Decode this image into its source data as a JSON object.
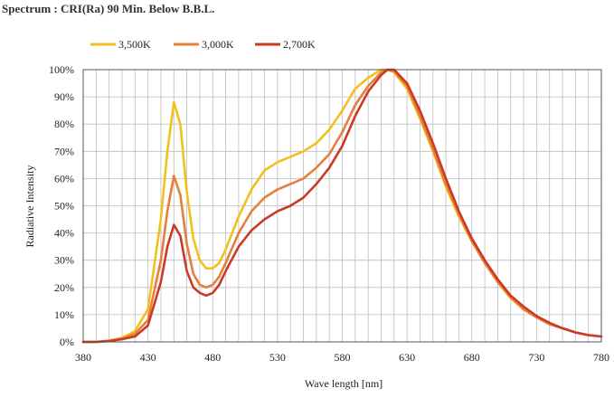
{
  "chart_data": {
    "type": "line",
    "title": "Spectrum : CRI(Ra) 90 Min. Below B.B.L.",
    "xlabel": "Wave length [nm]",
    "ylabel": "Radiative Intensity",
    "xlim": [
      380,
      780
    ],
    "ylim": [
      0,
      100
    ],
    "x_ticks": [
      380,
      430,
      480,
      530,
      580,
      630,
      680,
      730,
      780
    ],
    "x_tick_labels": [
      "380",
      "430",
      "480",
      "530",
      "580",
      "630",
      "680",
      "730",
      "780"
    ],
    "y_ticks": [
      0,
      10,
      20,
      30,
      40,
      50,
      60,
      70,
      80,
      90,
      100
    ],
    "y_tick_labels": [
      "0%",
      "10%",
      "20%",
      "30%",
      "40%",
      "50%",
      "60%",
      "70%",
      "80%",
      "90%",
      "100%"
    ],
    "grid": true,
    "legend_position": "top-left",
    "x": [
      380,
      390,
      400,
      410,
      420,
      430,
      440,
      445,
      450,
      455,
      460,
      465,
      470,
      475,
      480,
      485,
      490,
      500,
      510,
      520,
      530,
      540,
      550,
      560,
      570,
      580,
      590,
      600,
      610,
      615,
      620,
      630,
      640,
      650,
      660,
      670,
      680,
      690,
      700,
      710,
      720,
      730,
      740,
      750,
      760,
      770,
      780
    ],
    "series": [
      {
        "name": "3,500K",
        "color": "#f2c01e",
        "values": [
          0,
          0,
          0.5,
          1.5,
          4,
          12,
          45,
          70,
          88,
          80,
          55,
          38,
          30,
          27,
          27,
          29,
          34,
          46,
          56,
          63,
          66,
          68,
          70,
          73,
          78,
          85,
          93,
          97,
          100,
          100,
          99,
          93,
          82,
          70,
          57,
          46,
          37,
          29,
          22,
          16,
          12,
          9,
          6.5,
          5,
          3.5,
          2.5,
          2
        ]
      },
      {
        "name": "3,000K",
        "color": "#e57f3c",
        "values": [
          0,
          0,
          0.4,
          1.2,
          3,
          8,
          30,
          48,
          61,
          54,
          36,
          25,
          21,
          20,
          21,
          24,
          29,
          40,
          48,
          53,
          56,
          58,
          60,
          64,
          69,
          77,
          87,
          94,
          99,
          100,
          99.5,
          94,
          83,
          71,
          58,
          47,
          37,
          29,
          22,
          16.5,
          12,
          9,
          6.5,
          5,
          3.5,
          2.5,
          2
        ]
      },
      {
        "name": "2,700K",
        "color": "#cc3a25",
        "values": [
          0,
          0,
          0.3,
          1,
          2,
          6,
          22,
          35,
          43,
          39,
          26,
          20,
          18,
          17,
          18,
          21,
          26,
          35,
          41,
          45,
          48,
          50,
          53,
          58,
          64,
          72,
          83,
          92,
          98,
          100,
          100,
          95,
          85,
          73,
          60,
          48,
          38,
          30,
          23,
          17,
          13,
          9.5,
          7,
          5,
          3.5,
          2.5,
          2
        ]
      }
    ]
  }
}
